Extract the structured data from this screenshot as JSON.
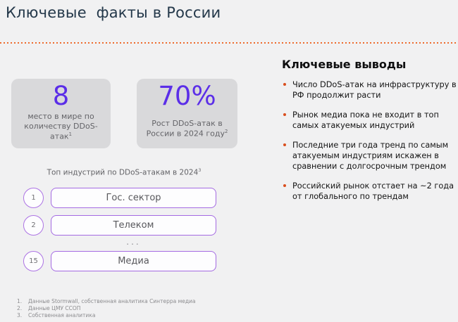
{
  "title": "Ключевые  факты в России",
  "stats": [
    {
      "value": "8",
      "label": "место в мире по количеству DDoS-атак",
      "sup": "1"
    },
    {
      "value": "70%",
      "label": "Рост DDoS-атак в России в 2024 году",
      "sup": "2"
    }
  ],
  "industries": {
    "heading": "Топ индустрий по DDoS-атакам в 2024",
    "sup": "3",
    "ellipsis": "...",
    "items": [
      {
        "rank": "1",
        "label": "Гос. сектор"
      },
      {
        "rank": "2",
        "label": "Телеком"
      },
      {
        "rank": "15",
        "label": "Медиа"
      }
    ]
  },
  "conclusions": {
    "heading": "Ключевые выводы",
    "bullets": [
      "Число DDoS-атак на инфраструктуру в РФ продолжит расти",
      "Рынок медиа пока не входит в топ самых атакуемых индустрий",
      "Последние три года тренд по самым атакуемым индустриям искажен в сравнении с долгосрочным трендом",
      "Российский рынок отстает на ~2 года от глобального по трендам"
    ]
  },
  "footnotes": [
    {
      "num": "1.",
      "text": "Данные Stormwall, собственная аналитика Синтерра медиа"
    },
    {
      "num": "2.",
      "text": "Данные ЦМУ ССОП"
    },
    {
      "num": "3.",
      "text": "Собственная аналитика"
    }
  ],
  "colors": {
    "background": "#f1f1f2",
    "card_gray": "#d9d9db",
    "accent_purple": "#5b2ee8",
    "border_purple": "#a46ae2",
    "divider_orange": "#ed6a2c",
    "bullet_orange": "#d94f1e",
    "title_navy": "#24384a"
  }
}
